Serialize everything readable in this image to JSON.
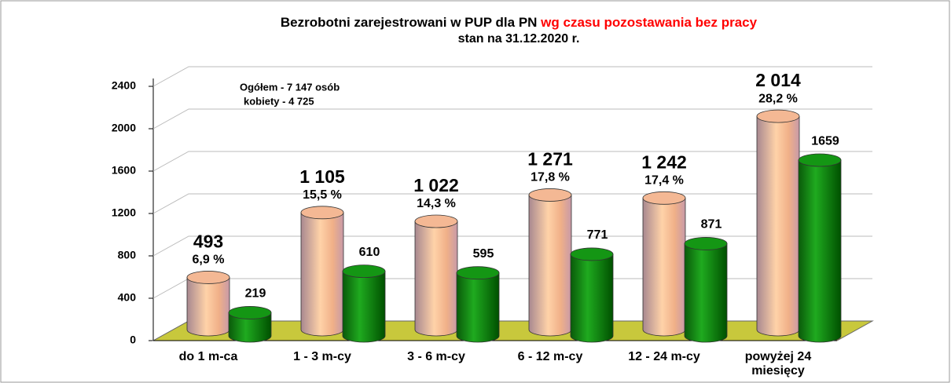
{
  "chart_data": {
    "type": "bar",
    "title": "Bezrobotni zarejestrowani w PUP dla PN ",
    "title_highlight": "wg czasu pozostawania bez pracy",
    "subtitle": "stan na 31.12.2020 r.",
    "annotations": [
      "Ogółem - 7 147 osób",
      "kobiety - 4 725"
    ],
    "categories": [
      "do 1 m-ca",
      "1 - 3 m-cy",
      "3 - 6 m-cy",
      "6 - 12 m-cy",
      "12 - 24 m-cy",
      "powyżej 24 miesięcy"
    ],
    "series": [
      {
        "color": "#f4b894",
        "values": [
          493,
          1105,
          1022,
          1271,
          1242,
          2014
        ],
        "value_labels": [
          "493",
          "1 105",
          "1 022",
          "1 271",
          "1 242",
          "2 014"
        ],
        "shares": [
          6.9,
          15.5,
          14.3,
          17.8,
          17.4,
          28.2
        ],
        "share_labels": [
          "6,9 %",
          "15,5 %",
          "14,3 %",
          "17,8 %",
          "17,4 %",
          "28,2 %"
        ]
      },
      {
        "color": "#149614",
        "values": [
          219,
          610,
          595,
          771,
          871,
          1659
        ]
      }
    ],
    "ylim": [
      0,
      2400
    ],
    "yticks": [
      0,
      400,
      800,
      1200,
      1600,
      2000,
      2400
    ],
    "grid": true,
    "floor_color": "#c8c83c"
  }
}
